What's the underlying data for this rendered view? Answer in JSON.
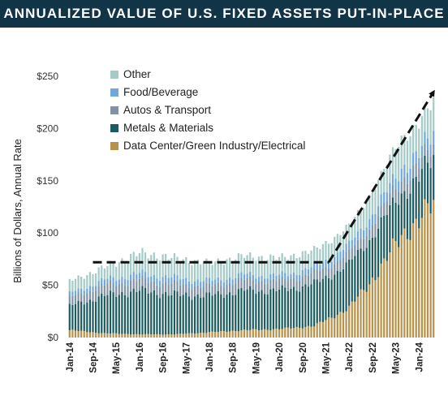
{
  "title": "ANNUALIZED VALUE OF U.S. FIXED ASSETS PUT-IN-PLACE",
  "chart_data": {
    "type": "bar",
    "stacked": true,
    "title": "ANNUALIZED VALUE OF U.S. FIXED ASSETS PUT-IN-PLACE",
    "xlabel": "",
    "ylabel": "Billions of Dollars, Annual Rate",
    "x_range": [
      "Jan-14",
      "Jun-24"
    ],
    "ylim": [
      0,
      250
    ],
    "y_ticks": [
      {
        "value": 0,
        "label": "$0"
      },
      {
        "value": 50,
        "label": "$50"
      },
      {
        "value": 100,
        "label": "$100"
      },
      {
        "value": 150,
        "label": "$150"
      },
      {
        "value": 200,
        "label": "$200"
      },
      {
        "value": 250,
        "label": "$250"
      }
    ],
    "x_ticks": [
      "Jan-14",
      "Sep-14",
      "May-15",
      "Jan-16",
      "Sep-16",
      "May-17",
      "Jan-18",
      "Sep-18",
      "May-19",
      "Jan-20",
      "Sep-20",
      "May-21",
      "Jan-22",
      "Sep-22",
      "May-23",
      "Jan-24"
    ],
    "legend_position": "top-left",
    "grid": false,
    "series": [
      {
        "name": "Data Center/Green Industry/Electrical",
        "color": "#b8924a",
        "anchors": [
          [
            0,
            7
          ],
          [
            12,
            4
          ],
          [
            24,
            3
          ],
          [
            36,
            3
          ],
          [
            48,
            5
          ],
          [
            60,
            7
          ],
          [
            72,
            8
          ],
          [
            84,
            11
          ],
          [
            96,
            28
          ],
          [
            108,
            70
          ],
          [
            114,
            100
          ],
          [
            120,
            108
          ],
          [
            126,
            137
          ]
        ]
      },
      {
        "name": "Metals & Materials",
        "color": "#1c5c60",
        "anchors": [
          [
            0,
            23
          ],
          [
            12,
            36
          ],
          [
            24,
            42
          ],
          [
            36,
            38
          ],
          [
            48,
            35
          ],
          [
            60,
            38
          ],
          [
            72,
            37
          ],
          [
            84,
            40
          ],
          [
            96,
            42
          ],
          [
            108,
            42
          ],
          [
            114,
            40
          ],
          [
            120,
            42
          ],
          [
            126,
            43
          ]
        ]
      },
      {
        "name": "Autos & Transport",
        "color": "#8093a6",
        "anchors": [
          [
            0,
            8
          ],
          [
            12,
            10
          ],
          [
            24,
            10
          ],
          [
            36,
            10
          ],
          [
            48,
            9
          ],
          [
            60,
            10
          ],
          [
            72,
            9
          ],
          [
            84,
            10
          ],
          [
            96,
            10
          ],
          [
            108,
            12
          ],
          [
            114,
            13
          ],
          [
            120,
            12
          ],
          [
            126,
            12
          ]
        ]
      },
      {
        "name": "Food/Beverage",
        "color": "#6fa7de",
        "anchors": [
          [
            0,
            4
          ],
          [
            12,
            5
          ],
          [
            24,
            6
          ],
          [
            36,
            6
          ],
          [
            48,
            5
          ],
          [
            60,
            5
          ],
          [
            72,
            5
          ],
          [
            84,
            6
          ],
          [
            96,
            8
          ],
          [
            108,
            10
          ],
          [
            114,
            11
          ],
          [
            120,
            11
          ],
          [
            126,
            12
          ]
        ]
      },
      {
        "name": "Other",
        "color": "#a4cbc8",
        "anchors": [
          [
            0,
            12
          ],
          [
            12,
            12
          ],
          [
            24,
            20
          ],
          [
            36,
            19
          ],
          [
            48,
            17
          ],
          [
            60,
            18
          ],
          [
            72,
            17
          ],
          [
            84,
            16
          ],
          [
            96,
            18
          ],
          [
            108,
            25
          ],
          [
            114,
            30
          ],
          [
            120,
            28
          ],
          [
            126,
            31
          ]
        ]
      }
    ],
    "annotations": [
      {
        "type": "dashed-line",
        "points": [
          [
            "Sep-14",
            72
          ],
          [
            "Jun-21",
            72
          ]
        ]
      },
      {
        "type": "dashed-arrow",
        "points": [
          [
            "Jun-21",
            72
          ],
          [
            "Jun-24",
            235
          ]
        ]
      }
    ]
  }
}
